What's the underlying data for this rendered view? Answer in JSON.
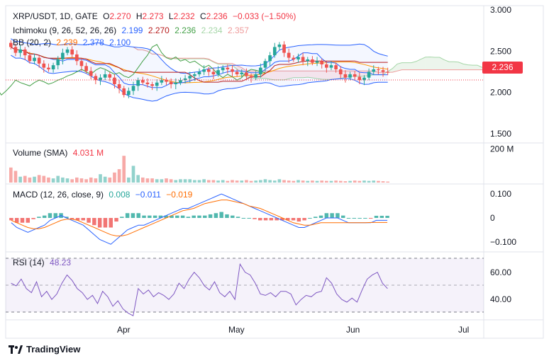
{
  "header": {
    "symbol": "XRP/USDT, 1D, GATE",
    "o_label": "O",
    "o_value": "2.270",
    "h_label": "H",
    "h_value": "2.273",
    "l_label": "L",
    "l_value": "2.232",
    "c_label": "C",
    "c_value": "2.236",
    "change": "−0.033 (−1.50%)"
  },
  "ichimoku": {
    "label": "Ichimoku (9, 26, 52, 26, 26)",
    "v1": "2.199",
    "v2": "2.270",
    "v3": "2.236",
    "v4": "2.234",
    "v5": "2.357"
  },
  "bb": {
    "label": "BB (20, 2)",
    "v1": "2.239",
    "v2": "2.378",
    "v3": "2.100"
  },
  "volume": {
    "label": "Volume (SMA)",
    "value": "4.031 M"
  },
  "macd": {
    "label": "MACD (12, 26, close, 9)",
    "v1": "0.008",
    "v2": "−0.011",
    "v3": "−0.019"
  },
  "rsi": {
    "label": "RSI (14)",
    "value": "48.23"
  },
  "price_tag": "2.236",
  "brand": "TradingView",
  "colors": {
    "up": "#26a69a",
    "down": "#ef5350",
    "bb": "#2962ff",
    "orange": "#ff9800",
    "rsi": "#7e57c2",
    "tenkan": "#2962ff",
    "kijun": "#b71c1c",
    "chikou": "#43a047"
  },
  "chart_data": [
    {
      "type": "candlestick",
      "title": "XRP/USDT, 1D, GATE",
      "x_ticks": [
        "Apr",
        "May",
        "Jun",
        "Jul"
      ],
      "y_ticks": [
        "3.000",
        "2.500",
        "2.000",
        "1.500"
      ],
      "ylim": [
        1.45,
        3.05
      ],
      "last_price": 2.236,
      "close": [
        2.55,
        2.48,
        2.52,
        2.45,
        2.38,
        2.42,
        2.35,
        2.3,
        2.28,
        2.33,
        2.4,
        2.48,
        2.52,
        2.46,
        2.38,
        2.32,
        2.26,
        2.2,
        2.15,
        2.18,
        2.22,
        2.18,
        2.1,
        2.05,
        1.97,
        2.02,
        2.08,
        2.15,
        2.12,
        2.1,
        2.08,
        2.12,
        2.15,
        2.13,
        2.1,
        2.12,
        2.15,
        2.17,
        2.2,
        2.22,
        2.25,
        2.28,
        2.25,
        2.22,
        2.27,
        2.3,
        2.28,
        2.25,
        2.22,
        2.24,
        2.2,
        2.18,
        2.22,
        2.3,
        2.38,
        2.45,
        2.55,
        2.58,
        2.48,
        2.42,
        2.4,
        2.43,
        2.38,
        2.4,
        2.36,
        2.38,
        2.34,
        2.3,
        2.33,
        2.28,
        2.22,
        2.18,
        2.22,
        2.19,
        2.15,
        2.18,
        2.25,
        2.28,
        2.27,
        2.25,
        2.24
      ],
      "overlays": [
        "Ichimoku cloud (9, 26, 52, 26, 26)",
        "Bollinger Bands (20, 2)"
      ]
    },
    {
      "type": "bar",
      "title": "Volume (SMA)",
      "y_ticks": [
        "200 M"
      ],
      "values_m": [
        90,
        70,
        35,
        40,
        30,
        35,
        45,
        40,
        30,
        25,
        40,
        30,
        25,
        20,
        30,
        25,
        20,
        30,
        25,
        50,
        35,
        30,
        60,
        80,
        160,
        30,
        100,
        45,
        30,
        25,
        25,
        20,
        20,
        25,
        20,
        15,
        20,
        20,
        20,
        15,
        15,
        20,
        15,
        15,
        12,
        15,
        10,
        15,
        12,
        12,
        15,
        10,
        12,
        15,
        20,
        15,
        12,
        20,
        15,
        12,
        10,
        15,
        12,
        10,
        12,
        10,
        12,
        10,
        10,
        12,
        10,
        8,
        10,
        12,
        10,
        12,
        10,
        12,
        10,
        8,
        6
      ]
    },
    {
      "type": "line",
      "title": "MACD (12, 26, close, 9)",
      "y_ticks": [
        "0.100",
        "0",
        "−0.100"
      ],
      "macd": [
        -0.02,
        -0.04,
        -0.05,
        -0.06,
        -0.05,
        -0.04,
        -0.03,
        -0.01,
        0.0,
        0.01,
        0.0,
        -0.01,
        -0.02,
        -0.03,
        -0.05,
        -0.07,
        -0.09,
        -0.1,
        -0.11,
        -0.09,
        -0.07,
        -0.05,
        -0.04,
        -0.03,
        -0.03,
        -0.02,
        -0.01,
        0.0,
        0.01,
        0.02,
        0.03,
        0.04,
        0.04,
        0.05,
        0.06,
        0.07,
        0.08,
        0.09,
        0.1,
        0.09,
        0.08,
        0.07,
        0.06,
        0.05,
        0.04,
        0.03,
        0.02,
        0.01,
        0.0,
        -0.01,
        -0.02,
        -0.03,
        -0.04,
        -0.04,
        -0.03,
        -0.02,
        -0.01,
        0.0,
        0.0,
        0.0,
        -0.01,
        -0.02,
        -0.02,
        -0.02,
        -0.02,
        -0.02,
        -0.01,
        -0.01,
        -0.01
      ],
      "signal": [
        -0.01,
        -0.02,
        -0.03,
        -0.04,
        -0.045,
        -0.045,
        -0.04,
        -0.03,
        -0.02,
        -0.01,
        -0.005,
        -0.005,
        -0.01,
        -0.02,
        -0.03,
        -0.04,
        -0.05,
        -0.06,
        -0.07,
        -0.075,
        -0.075,
        -0.07,
        -0.06,
        -0.05,
        -0.04,
        -0.03,
        -0.02,
        -0.01,
        0.0,
        0.01,
        0.02,
        0.03,
        0.035,
        0.04,
        0.05,
        0.06,
        0.065,
        0.07,
        0.075,
        0.075,
        0.07,
        0.065,
        0.06,
        0.05,
        0.045,
        0.04,
        0.03,
        0.02,
        0.01,
        0.0,
        -0.01,
        -0.02,
        -0.025,
        -0.03,
        -0.03,
        -0.025,
        -0.02,
        -0.02,
        -0.02,
        -0.02,
        -0.02,
        -0.02,
        -0.02,
        -0.02,
        -0.02,
        -0.019,
        -0.019,
        -0.019,
        -0.019
      ]
    },
    {
      "type": "line",
      "title": "RSI (14)",
      "y_ticks": [
        "60.00",
        "40.00"
      ],
      "ylim": [
        25,
        75
      ],
      "bands": [
        70,
        50,
        30
      ],
      "values": [
        52,
        50,
        55,
        48,
        45,
        53,
        42,
        46,
        40,
        44,
        52,
        58,
        54,
        48,
        45,
        40,
        43,
        37,
        46,
        42,
        35,
        39,
        33,
        30,
        28,
        48,
        44,
        47,
        42,
        45,
        43,
        40,
        44,
        52,
        48,
        55,
        60,
        56,
        50,
        47,
        53,
        45,
        42,
        46,
        40,
        66,
        60,
        58,
        52,
        44,
        43,
        45,
        42,
        46,
        46,
        44,
        36,
        40,
        43,
        42,
        45,
        46,
        56,
        52,
        44,
        40,
        38,
        41,
        38,
        47,
        55,
        58,
        60,
        52,
        48
      ]
    }
  ]
}
